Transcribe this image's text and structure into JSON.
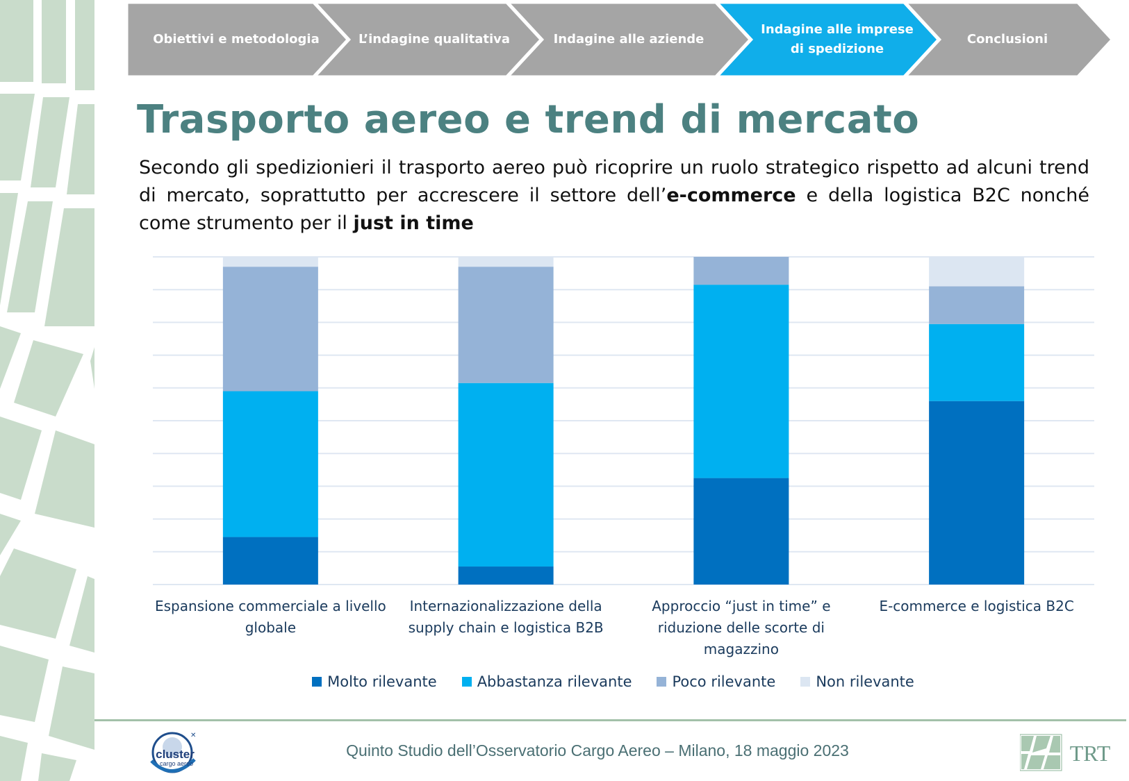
{
  "breadcrumb": {
    "steps": [
      {
        "label": "Obiettivi e metodologia",
        "active": false
      },
      {
        "label": "L’indagine qualitativa",
        "active": false
      },
      {
        "label": "Indagine alle aziende",
        "active": false
      },
      {
        "label_line1": "Indagine alle imprese",
        "label_line2": "di spedizione",
        "active": true
      },
      {
        "label": "Conclusioni",
        "active": false
      }
    ],
    "colors": {
      "inactive": "#a5a5a5",
      "active": "#10aeea"
    }
  },
  "title": "Trasporto aereo e trend di mercato",
  "intro": {
    "part1": "Secondo gli spedizionieri il trasporto aereo può ricoprire un ruolo strategico rispetto ad alcuni trend di mercato, soprattutto per accrescere il settore dell’",
    "bold1": "e-commerce",
    "part2": " e della logistica B2C nonché come strumento per il ",
    "bold2": "just in time"
  },
  "chart_data": {
    "type": "bar",
    "stacked": true,
    "orientation": "vertical",
    "categories": [
      [
        "Espansione commerciale a livello",
        "globale"
      ],
      [
        "Internazionalizzazione della",
        "supply chain e logistica B2B"
      ],
      [
        "Approccio “just in time” e",
        "riduzione delle scorte di",
        "magazzino"
      ],
      [
        "E-commerce e logistica B2C"
      ]
    ],
    "series": [
      {
        "name": "Molto rilevante",
        "color": "#0070c0",
        "values": [
          14.5,
          5.5,
          32.5,
          56
        ]
      },
      {
        "name": "Abbastanza rilevante",
        "color": "#00b0f0",
        "values": [
          44.5,
          56,
          59,
          23.5
        ]
      },
      {
        "name": "Poco rilevante",
        "color": "#95b3d7",
        "values": [
          38,
          35.5,
          8.5,
          11.5
        ]
      },
      {
        "name": "Non rilevante",
        "color": "#dce6f2",
        "values": [
          3,
          3,
          0,
          9
        ]
      }
    ],
    "ylim": [
      0,
      100
    ],
    "grid_lines": 10,
    "title": "",
    "xlabel": "",
    "ylabel": "",
    "legend_position": "bottom"
  },
  "footer": {
    "text": "Quinto Studio dell’Osservatorio Cargo Aereo – Milano, 18 maggio 2023",
    "logo_left_line1": "cluster",
    "logo_left_line2": "cargo aereo",
    "logo_right": "TRT"
  }
}
